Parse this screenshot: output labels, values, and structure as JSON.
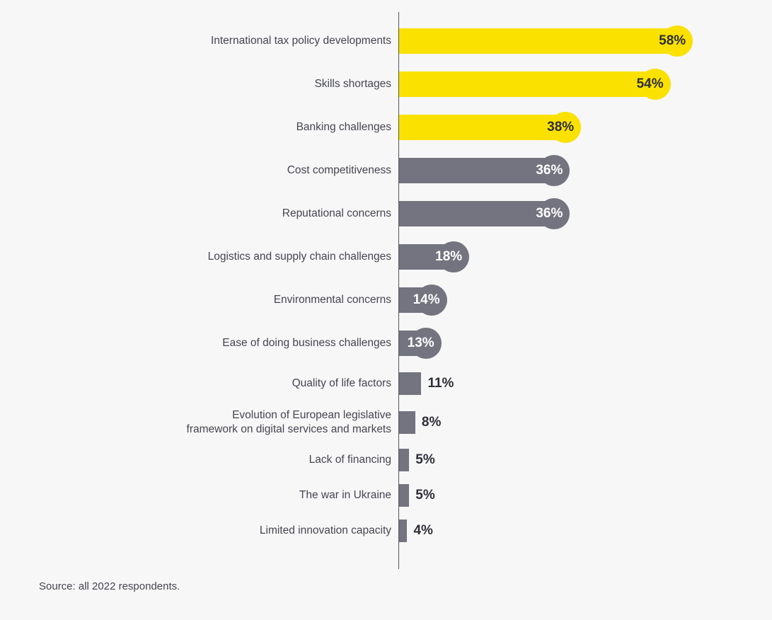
{
  "colors": {
    "yellow": "#fae100",
    "gray": "#747480",
    "background": "#f7f7f8",
    "axis": "#54545e",
    "category_text": "#45454f",
    "value_text_dark": "#2e2e38",
    "value_text_light": "#ffffff"
  },
  "chart_data": {
    "type": "bar",
    "orientation": "horizontal",
    "title": "",
    "xlabel": "",
    "ylabel": "",
    "value_unit": "%",
    "xlim": [
      0,
      60
    ],
    "grid": false,
    "legend": "none",
    "items": [
      {
        "label": "International tax policy developments",
        "value": 58,
        "display": "58%",
        "color": "yellow",
        "end_cap": true,
        "value_label_position": "inside"
      },
      {
        "label": "Skills shortages",
        "value": 54,
        "display": "54%",
        "color": "yellow",
        "end_cap": true,
        "value_label_position": "inside"
      },
      {
        "label": "Banking challenges",
        "value": 38,
        "display": "38%",
        "color": "yellow",
        "end_cap": true,
        "value_label_position": "inside"
      },
      {
        "label": "Cost competitiveness",
        "value": 36,
        "display": "36%",
        "color": "gray",
        "end_cap": true,
        "value_label_position": "inside"
      },
      {
        "label": "Reputational concerns",
        "value": 36,
        "display": "36%",
        "color": "gray",
        "end_cap": true,
        "value_label_position": "inside"
      },
      {
        "label": "Logistics and supply chain challenges",
        "value": 18,
        "display": "18%",
        "color": "gray",
        "end_cap": true,
        "value_label_position": "inside"
      },
      {
        "label": "Environmental concerns",
        "value": 14,
        "display": "14%",
        "color": "gray",
        "end_cap": true,
        "value_label_position": "inside"
      },
      {
        "label": "Ease of doing business challenges",
        "value": 13,
        "display": "13%",
        "color": "gray",
        "end_cap": true,
        "value_label_position": "inside"
      },
      {
        "label": "Quality of life factors",
        "value": 11,
        "display": "11%",
        "color": "gray",
        "end_cap": false,
        "value_label_position": "outside"
      },
      {
        "label": "Evolution of European legislative\nframework on digital services and markets",
        "value": 8,
        "display": "8%",
        "color": "gray",
        "end_cap": false,
        "value_label_position": "outside"
      },
      {
        "label": "Lack of financing",
        "value": 5,
        "display": "5%",
        "color": "gray",
        "end_cap": false,
        "value_label_position": "outside"
      },
      {
        "label": "The war in Ukraine",
        "value": 5,
        "display": "5%",
        "color": "gray",
        "end_cap": false,
        "value_label_position": "outside"
      },
      {
        "label": "Limited innovation capacity",
        "value": 4,
        "display": "4%",
        "color": "gray",
        "end_cap": false,
        "value_label_position": "outside"
      }
    ],
    "source": "Source: all 2022 respondents."
  },
  "footer": {
    "source": "Source: all 2022 respondents."
  }
}
